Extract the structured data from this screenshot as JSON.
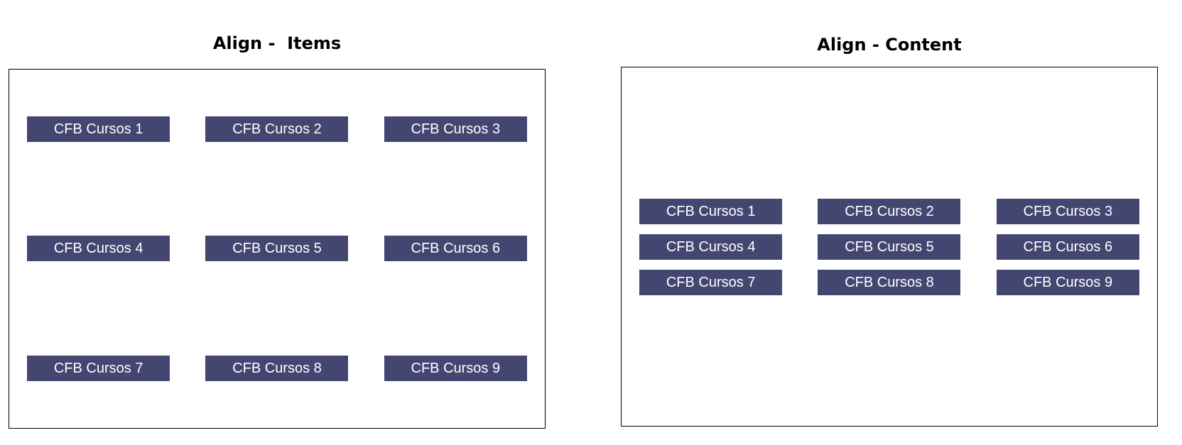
{
  "align_items": {
    "title": "Align -  Items",
    "items": [
      "CFB Cursos 1",
      "CFB Cursos 2",
      "CFB Cursos 3",
      "CFB Cursos 4",
      "CFB Cursos 5",
      "CFB Cursos 6",
      "CFB Cursos 7",
      "CFB Cursos 8",
      "CFB Cursos 9"
    ]
  },
  "align_content": {
    "title": "Align - Content",
    "items": [
      "CFB Cursos 1",
      "CFB Cursos 2",
      "CFB Cursos 3",
      "CFB Cursos 4",
      "CFB Cursos 5",
      "CFB Cursos 6",
      "CFB Cursos 7",
      "CFB Cursos 8",
      "CFB Cursos 9"
    ]
  },
  "colors": {
    "item_background": "#444672",
    "item_text": "#ffffff",
    "border": "#000000"
  }
}
